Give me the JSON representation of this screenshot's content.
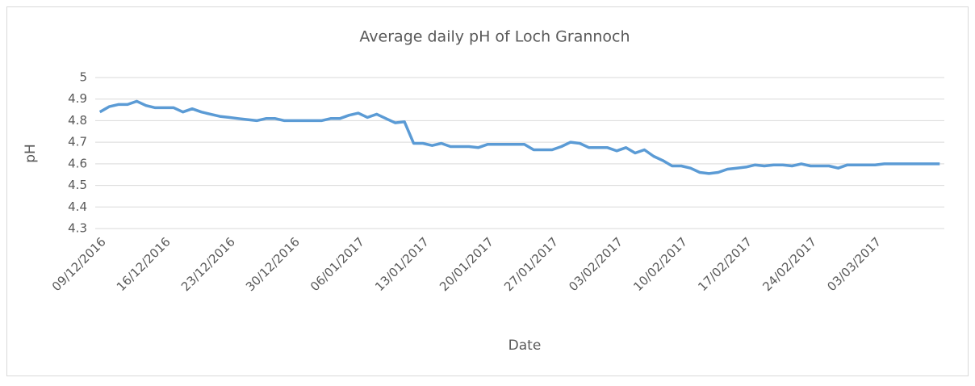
{
  "chart_data": {
    "type": "line",
    "title": "Average daily pH of Loch Grannoch",
    "x_label": "Date",
    "y_label": "pH",
    "x": [
      "09/12/2016",
      "10/12/2016",
      "11/12/2016",
      "12/12/2016",
      "13/12/2016",
      "14/12/2016",
      "15/12/2016",
      "16/12/2016",
      "17/12/2016",
      "18/12/2016",
      "19/12/2016",
      "20/12/2016",
      "21/12/2016",
      "22/12/2016",
      "23/12/2016",
      "24/12/2016",
      "25/12/2016",
      "26/12/2016",
      "27/12/2016",
      "28/12/2016",
      "29/12/2016",
      "30/12/2016",
      "31/12/2016",
      "01/01/2017",
      "02/01/2017",
      "03/01/2017",
      "04/01/2017",
      "05/01/2017",
      "06/01/2017",
      "07/01/2017",
      "08/01/2017",
      "09/01/2017",
      "10/01/2017",
      "11/01/2017",
      "12/01/2017",
      "13/01/2017",
      "14/01/2017",
      "15/01/2017",
      "16/01/2017",
      "17/01/2017",
      "18/01/2017",
      "19/01/2017",
      "20/01/2017",
      "21/01/2017",
      "22/01/2017",
      "23/01/2017",
      "24/01/2017",
      "25/01/2017",
      "26/01/2017",
      "27/01/2017",
      "28/01/2017",
      "29/01/2017",
      "30/01/2017",
      "31/01/2017",
      "01/02/2017",
      "02/02/2017",
      "03/02/2017",
      "04/02/2017",
      "05/02/2017",
      "06/02/2017",
      "07/02/2017",
      "08/02/2017",
      "09/02/2017",
      "10/02/2017",
      "11/02/2017",
      "12/02/2017",
      "13/02/2017",
      "14/02/2017",
      "15/02/2017",
      "16/02/2017",
      "17/02/2017",
      "18/02/2017",
      "19/02/2017",
      "20/02/2017",
      "21/02/2017",
      "22/02/2017",
      "23/02/2017",
      "24/02/2017",
      "25/02/2017",
      "26/02/2017",
      "27/02/2017",
      "28/02/2017",
      "01/03/2017",
      "02/03/2017",
      "03/03/2017",
      "04/03/2017",
      "05/03/2017",
      "06/03/2017",
      "07/03/2017",
      "08/03/2017",
      "09/03/2017",
      "10/03/2017"
    ],
    "series": [
      {
        "name": "pH",
        "color": "#5b9bd5",
        "values": [
          4.84,
          4.865,
          4.875,
          4.875,
          4.89,
          4.87,
          4.86,
          4.86,
          4.86,
          4.84,
          4.855,
          4.84,
          4.83,
          4.82,
          4.815,
          4.81,
          4.805,
          4.8,
          4.81,
          4.81,
          4.8,
          4.8,
          4.8,
          4.8,
          4.8,
          4.81,
          4.81,
          4.825,
          4.835,
          4.815,
          4.83,
          4.81,
          4.79,
          4.795,
          4.695,
          4.695,
          4.685,
          4.695,
          4.68,
          4.68,
          4.68,
          4.675,
          4.69,
          4.69,
          4.69,
          4.69,
          4.69,
          4.665,
          4.665,
          4.665,
          4.68,
          4.7,
          4.695,
          4.675,
          4.675,
          4.675,
          4.66,
          4.675,
          4.65,
          4.665,
          4.635,
          4.615,
          4.59,
          4.59,
          4.58,
          4.56,
          4.555,
          4.56,
          4.575,
          4.58,
          4.585,
          4.595,
          4.59,
          4.595,
          4.595,
          4.59,
          4.6,
          4.59,
          4.59,
          4.59,
          4.58,
          4.595,
          4.595,
          4.595,
          4.595,
          4.6,
          4.6,
          4.6,
          4.6,
          4.6,
          4.6,
          4.6
        ]
      }
    ],
    "xticks": [
      "09/12/2016",
      "16/12/2016",
      "23/12/2016",
      "30/12/2016",
      "06/01/2017",
      "13/01/2017",
      "20/01/2017",
      "27/01/2017",
      "03/02/2017",
      "10/02/2017",
      "17/02/2017",
      "24/02/2017",
      "03/03/2017"
    ],
    "ylim": [
      4.3,
      5
    ],
    "yticks": [
      4.3,
      4.4,
      4.5,
      4.6,
      4.7,
      4.8,
      4.9,
      5
    ],
    "grid": true,
    "legend": false
  }
}
